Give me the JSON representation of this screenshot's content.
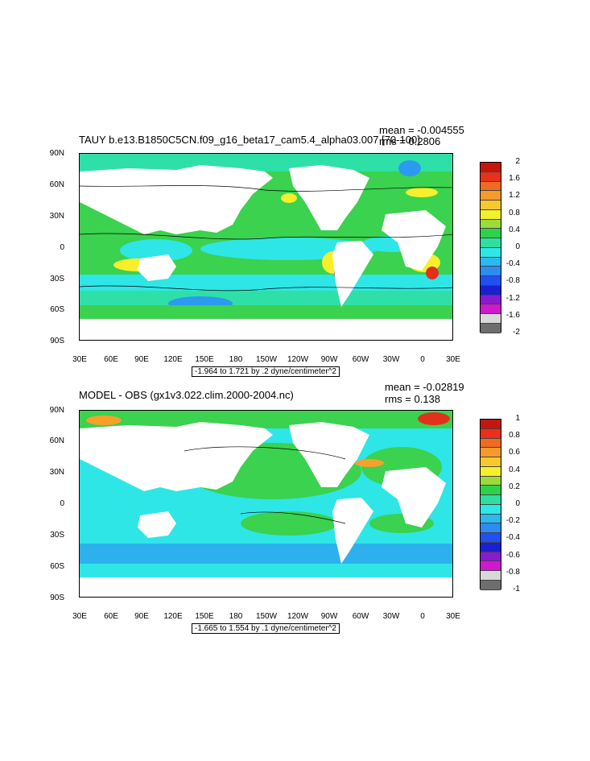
{
  "panels": [
    {
      "title": "TAUY b.e13.B1850C5CN.f09_g16_beta17_cam5.4_alpha03.007 [70-100]",
      "mean_label": "mean = -0.004555",
      "rms_label": "rms = 0.2806",
      "range_label": "-1.964 to 1.721 by .2 dyne/centimeter^2",
      "colorbar_labels": [
        "2",
        "1.6",
        "1.2",
        "0.8",
        "0.4",
        "0",
        "-0.4",
        "-0.8",
        "-1.2",
        "-1.6",
        "-2"
      ],
      "colorbar_colors": [
        "#c4160c",
        "#e8301a",
        "#f06a22",
        "#f79a2c",
        "#f7c92c",
        "#f5f02c",
        "#9cdc3a",
        "#2ed24a",
        "#2ee0a0",
        "#2ee8e8",
        "#2cb8f0",
        "#2c8cf0",
        "#2050f0",
        "#1a20d0",
        "#8a1ad0",
        "#d018d0",
        "#d8d8d8",
        "#6e6e6e"
      ]
    },
    {
      "title": "MODEL - OBS (gx1v3.022.clim.2000-2004.nc)",
      "mean_label": "mean = -0.02819",
      "rms_label": "rms = 0.138",
      "range_label": "-1.665 to 1.554 by .1 dyne/centimeter^2",
      "colorbar_labels": [
        "1",
        "0.8",
        "0.6",
        "0.4",
        "0.2",
        "0",
        "-0.2",
        "-0.4",
        "-0.6",
        "-0.8",
        "-1"
      ],
      "colorbar_colors": [
        "#c4160c",
        "#e8301a",
        "#f06a22",
        "#f79a2c",
        "#f7c92c",
        "#f5f02c",
        "#9cdc3a",
        "#2ed24a",
        "#2ee0a0",
        "#2ee8e8",
        "#2cb8f0",
        "#2c8cf0",
        "#2050f0",
        "#1a20d0",
        "#8a1ad0",
        "#d018d0",
        "#d8d8d8",
        "#6e6e6e"
      ]
    }
  ],
  "lat_labels": [
    "90N",
    "60N",
    "30N",
    "0",
    "30S",
    "60S",
    "90S"
  ],
  "lon_labels": [
    "30E",
    "60E",
    "90E",
    "120E",
    "150E",
    "180",
    "150W",
    "120W",
    "90W",
    "60W",
    "30W",
    "0",
    "30E"
  ],
  "map_colors": {
    "land": "#ffffff",
    "green": "#3ad24e",
    "lightgreen": "#7cdc4a",
    "cyan": "#2ee6e6",
    "teal": "#2ee0a8",
    "blue": "#2c9af0",
    "yellow": "#f7ef2c",
    "orange": "#f7a02c",
    "red": "#e2301c"
  }
}
